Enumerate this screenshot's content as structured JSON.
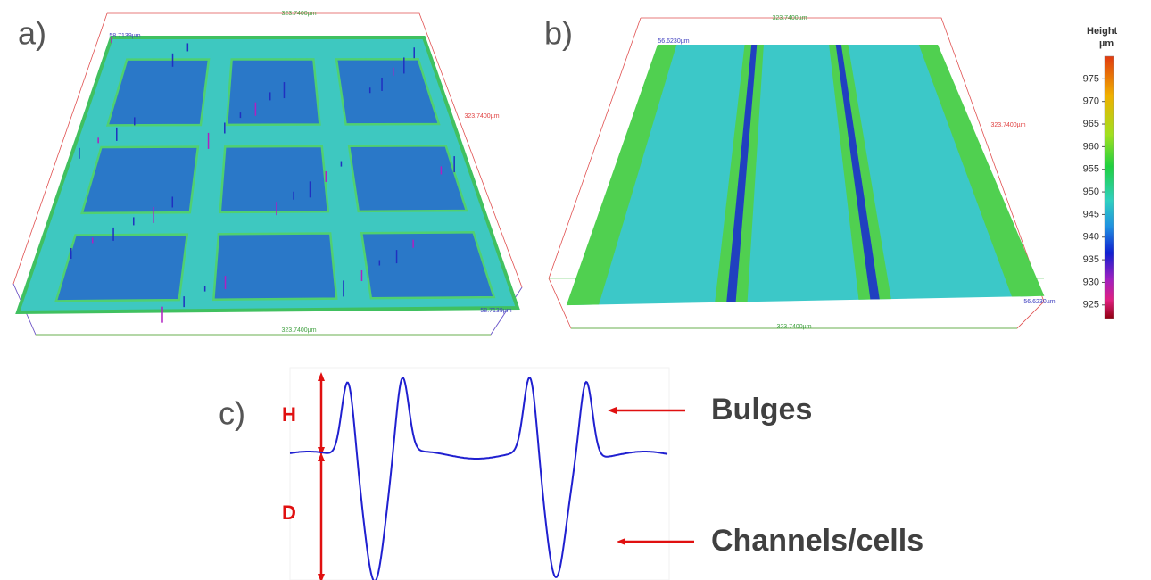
{
  "panels": {
    "a": {
      "label": "a)",
      "dims": [
        "323.7400µm",
        "323.7400µm",
        "323.7400µm",
        "58.7139µm",
        "58.7139µm"
      ]
    },
    "b": {
      "label": "b)",
      "dims": [
        "323.7400µm",
        "323.7400µm",
        "323.7400µm",
        "56.6230µm",
        "56.6230µm"
      ]
    },
    "c": {
      "label": "c)",
      "height_label": "H",
      "depth_label": "D",
      "bulges": "Bulges",
      "channels": "Channels/cells"
    }
  },
  "colorbar": {
    "title": "Height",
    "unit": "µm",
    "lim": [
      922,
      980
    ],
    "ticks": [
      975,
      970,
      965,
      960,
      955,
      950,
      945,
      940,
      935,
      930,
      925
    ]
  }
}
